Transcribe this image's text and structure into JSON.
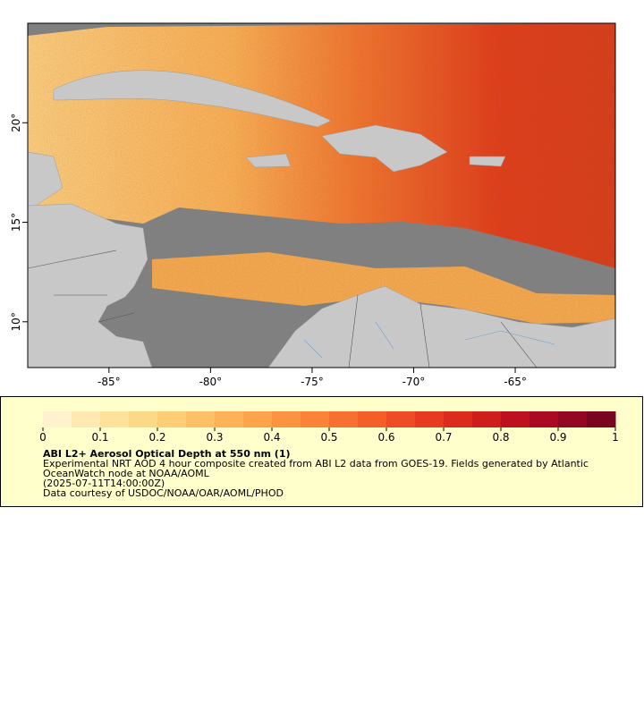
{
  "map": {
    "xlim": [
      -89.0,
      -60.07
    ],
    "ylim": [
      7.7,
      25.0
    ],
    "xticks": [
      {
        "value": -85,
        "label": "-85°"
      },
      {
        "value": -80,
        "label": "-80°"
      },
      {
        "value": -75,
        "label": "-75°"
      },
      {
        "value": -70,
        "label": "-70°"
      },
      {
        "value": -65,
        "label": "-65°"
      }
    ],
    "yticks": [
      {
        "value": 10,
        "label": "10°"
      },
      {
        "value": 15,
        "label": "15°"
      },
      {
        "value": 20,
        "label": "20°"
      }
    ]
  },
  "legend": {
    "colorbar": {
      "range": [
        0,
        1
      ],
      "ticks": [
        0,
        0.1,
        0.2,
        0.3,
        0.4,
        0.5,
        0.6,
        0.7,
        0.8,
        0.9,
        1
      ],
      "colors": [
        "#fff2cc",
        "#ffe9b0",
        "#fee29c",
        "#fed889",
        "#fecd76",
        "#fdc066",
        "#fdb257",
        "#fda34b",
        "#fc9340",
        "#fb8236",
        "#f8702f",
        "#f35e29",
        "#ee4c24",
        "#e63b20",
        "#dc2a1d",
        "#cf1c1d",
        "#be1120",
        "#aa0b22",
        "#930722",
        "#7a0520"
      ]
    },
    "title": "ABI L2+ Aerosol Optical Depth at 550 nm (1)",
    "lines": [
      "Experimental NRT AOD 4 hour composite created from ABI L2 data from GOES-19. Fields generated by Atlantic",
      "OceanWatch node at NOAA/AOML",
      "(2025-07-11T14:00:00Z)",
      "Data courtesy of USDOC/NOAA/OAR/AOML/PHOD"
    ]
  }
}
